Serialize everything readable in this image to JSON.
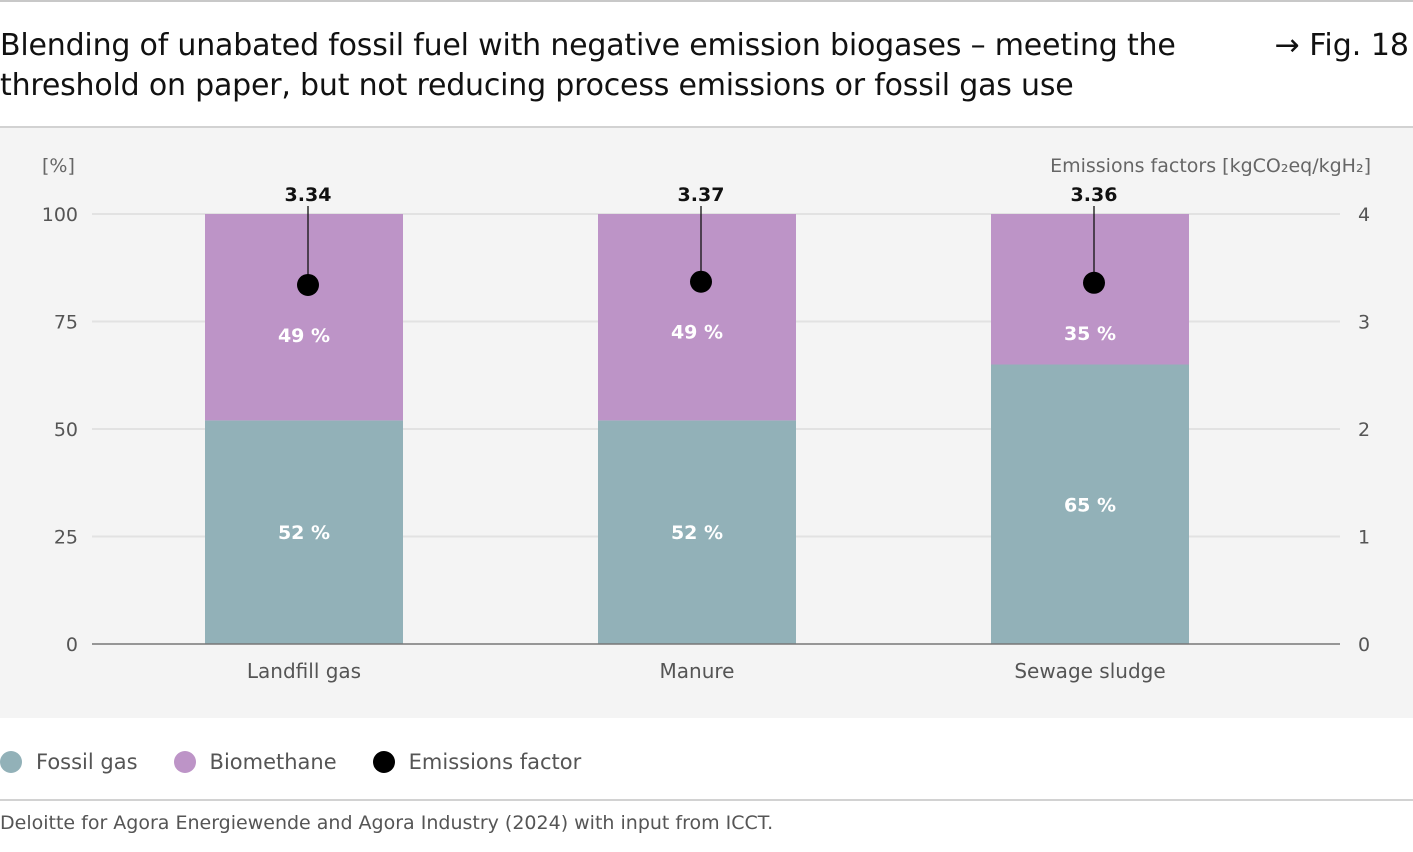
{
  "header": {
    "title": "Blending of unabated fossil fuel with negative emission biogases – meeting the threshold on paper, but not reducing process emissions or fossil gas use",
    "fig_ref": "→ Fig. 18"
  },
  "chart_data": {
    "type": "bar",
    "stacked": true,
    "categories": [
      "Landfill gas",
      "Manure",
      "Sewage sludge"
    ],
    "series": [
      {
        "name": "Fossil gas",
        "values": [
          52,
          52,
          65
        ],
        "labels": [
          "52 %",
          "52 %",
          "65 %"
        ],
        "color": "#92b1b8"
      },
      {
        "name": "Biomethane",
        "values": [
          49,
          49,
          35
        ],
        "labels": [
          "49 %",
          "49 %",
          "35 %"
        ],
        "color": "#bd94c7"
      }
    ],
    "secondary_series": {
      "name": "Emissions factor",
      "type": "scatter",
      "values": [
        3.34,
        3.37,
        3.36
      ],
      "labels": [
        "3.34",
        "3.37",
        "3.36"
      ],
      "color": "#000000"
    },
    "ylabel": "[%]",
    "ylim": [
      0,
      100
    ],
    "yticks": [
      "0",
      "25",
      "50",
      "75",
      "100"
    ],
    "ylabel_right": "Emissions factors [kgCO₂eq/kgH₂]",
    "ylim_right": [
      0,
      4
    ],
    "yticks_right": [
      "0",
      "1",
      "2",
      "3",
      "4"
    ],
    "grid": true,
    "legend_position": "bottom-left"
  },
  "legend": [
    {
      "label": "Fossil gas",
      "color": "#92b1b8"
    },
    {
      "label": "Biomethane",
      "color": "#bd94c7"
    },
    {
      "label": "Emissions factor",
      "color": "#000000"
    }
  ],
  "source": "Deloitte for Agora Energiewende and Agora Industry (2024) with input from ICCT."
}
